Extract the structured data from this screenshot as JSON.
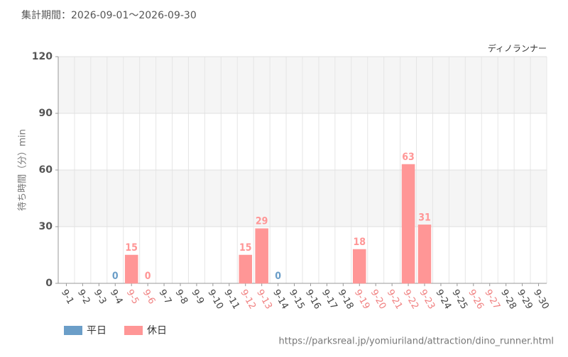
{
  "chart_data": {
    "type": "bar",
    "subtitle": "集計期間：2026-09-01～2026-09-30",
    "title": "ディノランナー",
    "y_label": "待ち時間（分）min",
    "source": "https://parksreal.jp/yomiuriland/attraction/dino_runner.html",
    "categories": [
      "9-1",
      "9-2",
      "9-3",
      "9-4",
      "9-5",
      "9-6",
      "9-7",
      "9-8",
      "9-9",
      "9-10",
      "9-11",
      "9-12",
      "9-13",
      "9-14",
      "9-15",
      "9-16",
      "9-17",
      "9-18",
      "9-19",
      "9-20",
      "9-21",
      "9-22",
      "9-23",
      "9-24",
      "9-25",
      "9-26",
      "9-27",
      "9-28",
      "9-29",
      "9-30"
    ],
    "category_colors": [
      "#444",
      "#444",
      "#444",
      "#444",
      "#f08080",
      "#f08080",
      "#444",
      "#444",
      "#444",
      "#444",
      "#444",
      "#f08080",
      "#f08080",
      "#444",
      "#444",
      "#444",
      "#444",
      "#444",
      "#f08080",
      "#f08080",
      "#f08080",
      "#f08080",
      "#f08080",
      "#444",
      "#444",
      "#f08080",
      "#f08080",
      "#444",
      "#444",
      "#444"
    ],
    "series": [
      {
        "name": "平日",
        "color": "#6b9ec8",
        "values": [
          null,
          null,
          null,
          0,
          null,
          null,
          null,
          null,
          null,
          null,
          null,
          null,
          null,
          0,
          null,
          null,
          null,
          null,
          null,
          null,
          null,
          null,
          null,
          null,
          null,
          null,
          null,
          null,
          null,
          null
        ]
      },
      {
        "name": "休日",
        "color": "#ff9696",
        "values": [
          null,
          null,
          null,
          null,
          15,
          0,
          null,
          null,
          null,
          null,
          null,
          15,
          29,
          null,
          null,
          null,
          null,
          null,
          18,
          null,
          null,
          63,
          31,
          null,
          null,
          null,
          null,
          null,
          null,
          null
        ]
      }
    ],
    "ylim": [
      0,
      120
    ],
    "yticks": [
      0,
      30,
      60,
      90,
      120
    ],
    "grid": true
  }
}
